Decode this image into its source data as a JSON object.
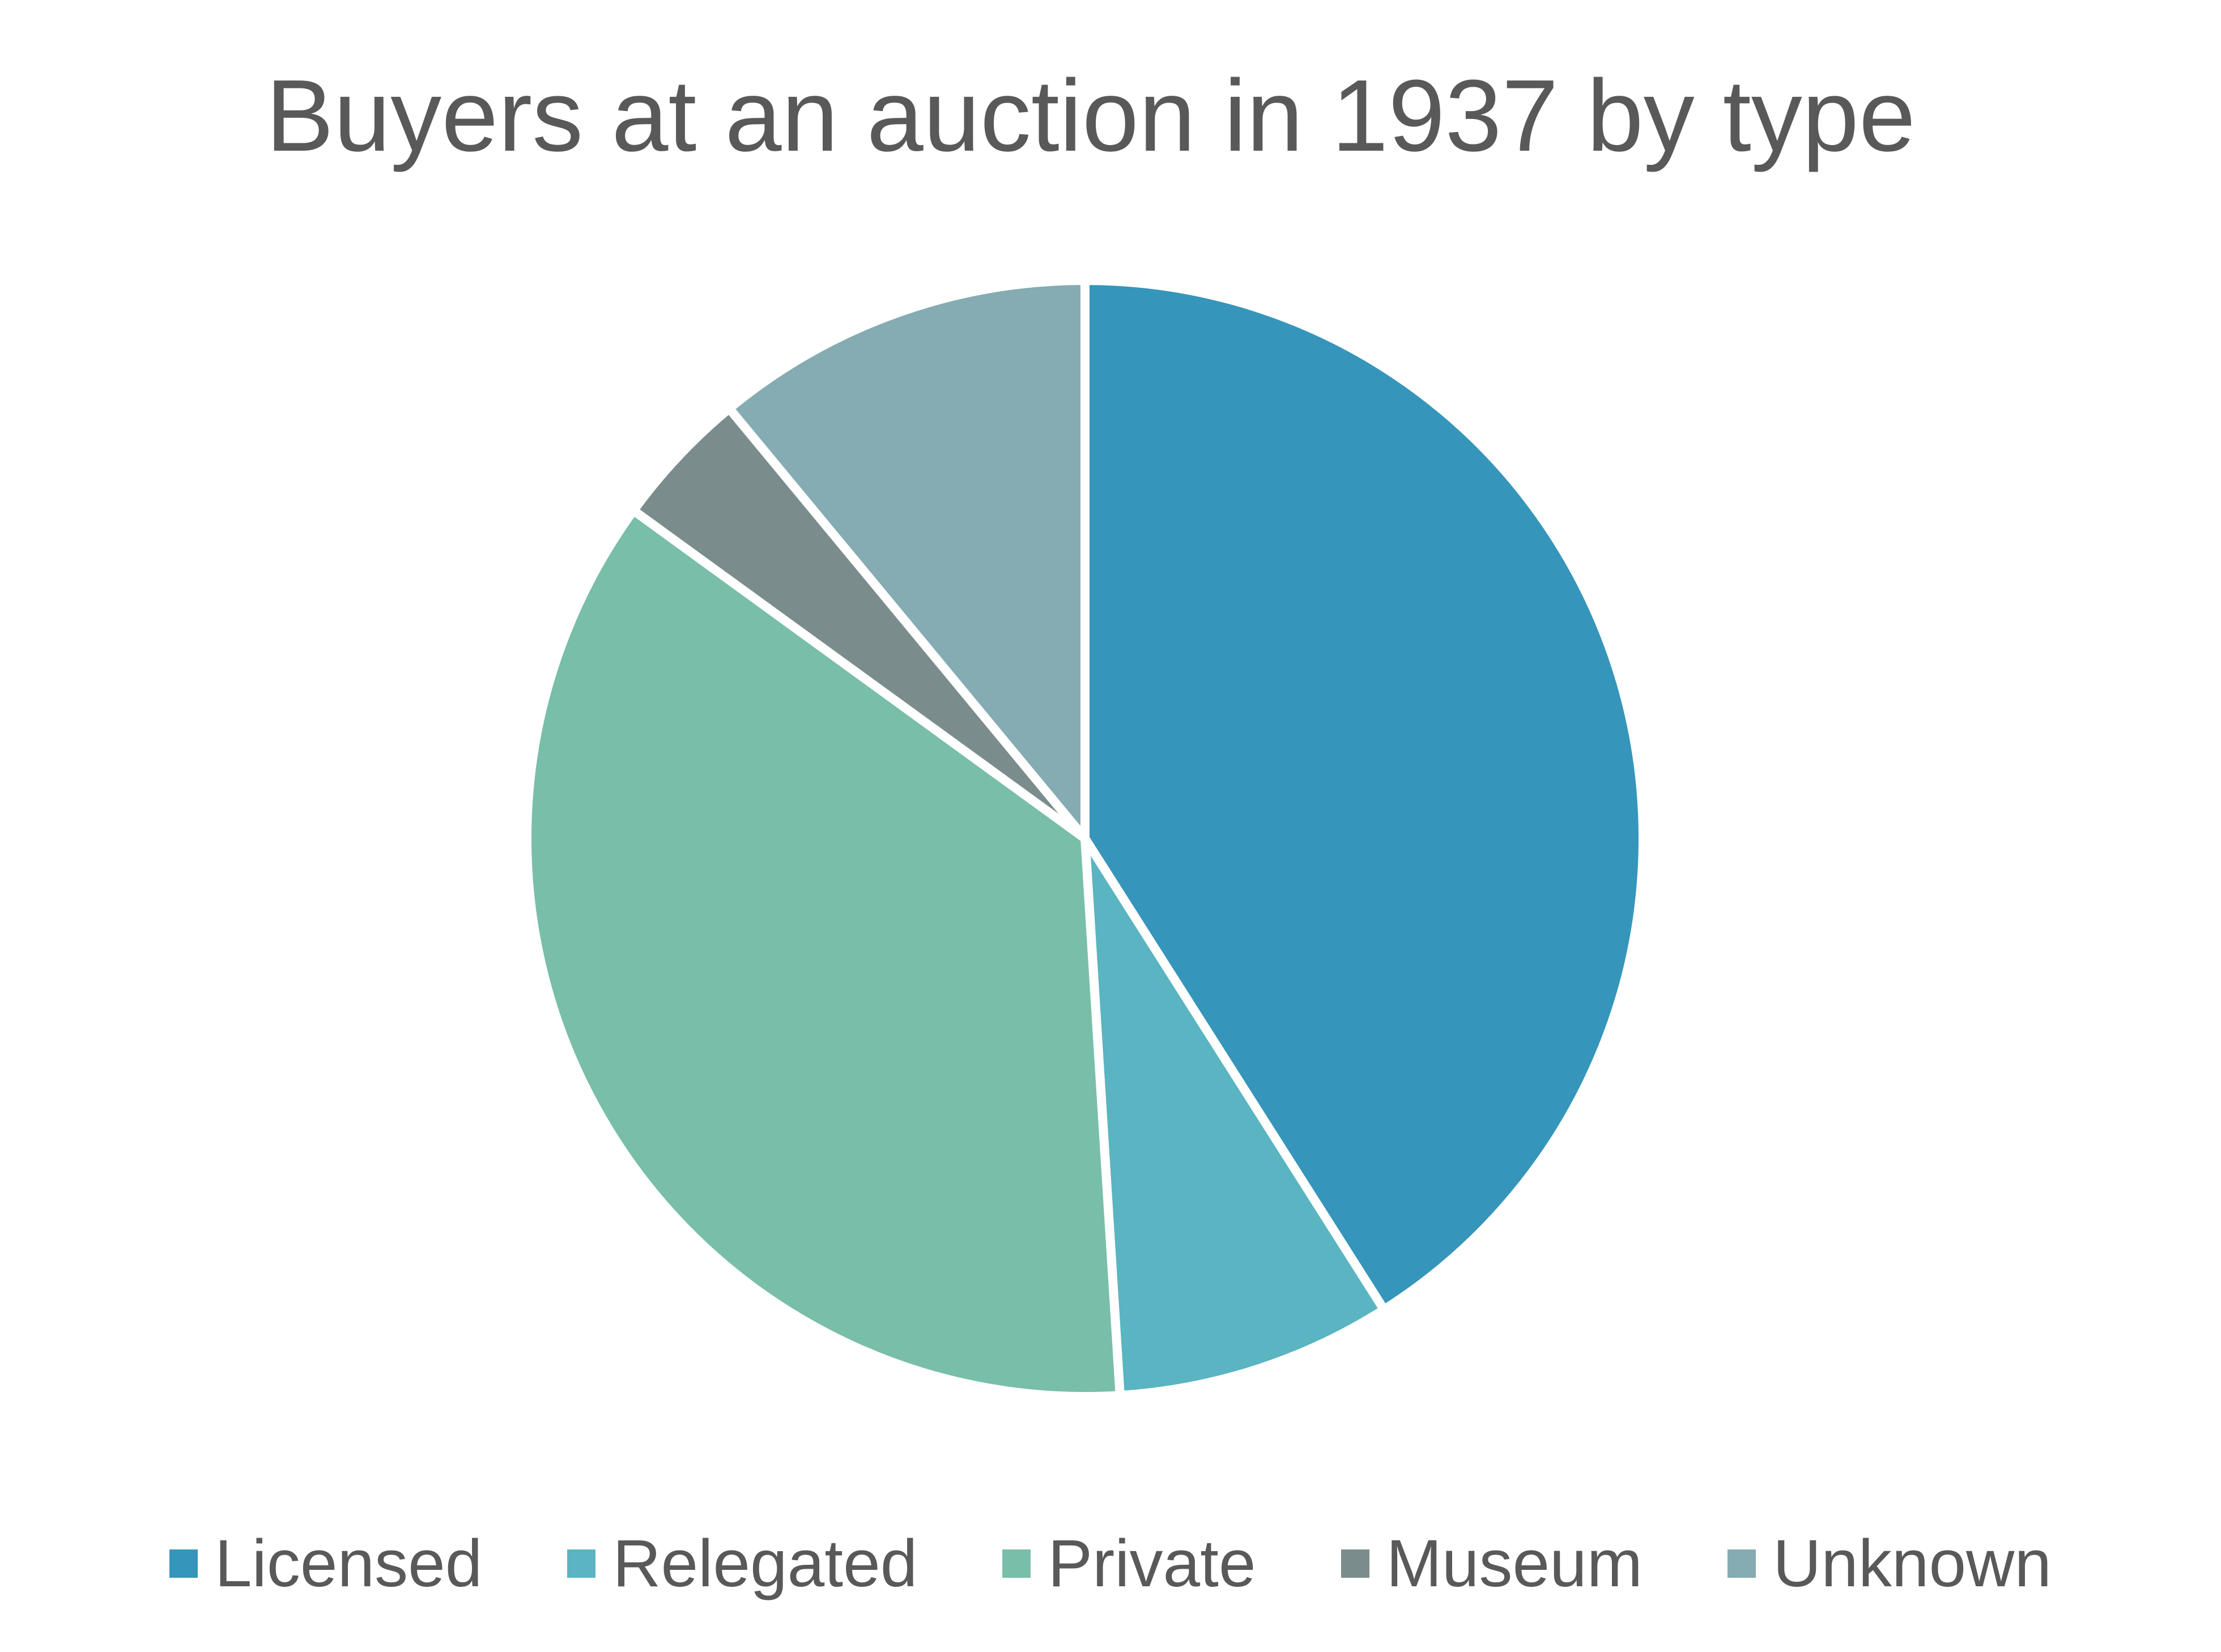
{
  "chart_data": {
    "type": "pie",
    "title": "Buyers at an auction in 1937 by type",
    "legend_position": "bottom",
    "start_angle_deg": 0,
    "direction": "clockwise",
    "slices": [
      {
        "label": "Licensed",
        "value": 41,
        "color": "#3695BA"
      },
      {
        "label": "Relegated",
        "value": 8,
        "color": "#5AB4C1"
      },
      {
        "label": "Private",
        "value": 36,
        "color": "#79BEA8"
      },
      {
        "label": "Museum",
        "value": 4,
        "color": "#7B8C8C"
      },
      {
        "label": "Unknown",
        "value": 11,
        "color": "#85ABB3"
      }
    ]
  }
}
